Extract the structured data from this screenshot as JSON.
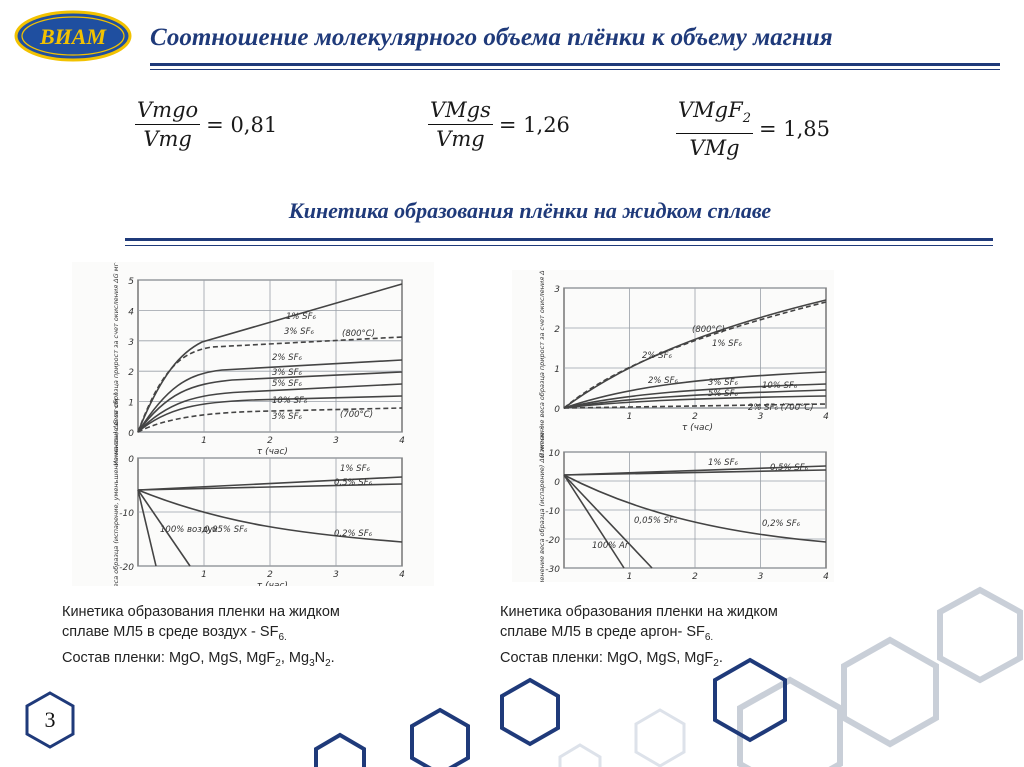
{
  "header": {
    "title": "Соотношение молекулярного объема плёнки к объему магния",
    "logo_text": "ВИАМ"
  },
  "formulas": [
    {
      "num": "Vmgo",
      "den": "Vmg",
      "value": "= 0,81"
    },
    {
      "num": "VMgs",
      "den": "Vmg",
      "value": "= 1,26"
    },
    {
      "num": "VMgF",
      "num_sub": "2",
      "den": "VMg",
      "value": "= 1,85"
    }
  ],
  "section_title": "Кинетика образования плёнки на жидком сплаве",
  "left_figure": {
    "top_ylabel": "Изменение веса образца прирост за счет окисления ΔG мг·см⁻²",
    "bottom_ylabel": "Изменение веса образца (испарение, уменьшение массы) ΔG мг·см⁻²",
    "top_yticks": [
      "5",
      "4",
      "3",
      "2",
      "1",
      "0"
    ],
    "bottom_yticks": [
      "0",
      "-10",
      "-20"
    ],
    "xticks": [
      "1",
      "2",
      "3",
      "4"
    ],
    "xlabel": "τ (час)",
    "top_curves": [
      "1% SF₆",
      "3% SF₆",
      "(800°C)",
      "2% SF₆",
      "3% SF₆",
      "5% SF₆",
      "10% SF₆",
      "3% SF₆",
      "(700°C)"
    ],
    "bottom_curves": [
      "1% SF₆",
      "0,5% SF₆",
      "100% воздух",
      "0,05% SF₆",
      "0,2% SF₆"
    ],
    "caption": [
      "Кинетика образования пленки на жидком",
      "сплаве МЛ5 в среде воздух - SF",
      "Состав пленки:  MgO, MgS, MgF",
      ", Mg",
      "N",
      "."
    ],
    "caption_subs": [
      "6.",
      "2",
      "3",
      "2"
    ]
  },
  "right_figure": {
    "top_ylabel": "Изменение веса образца прирост за счет окисления ΔG мг·см⁻²",
    "bottom_ylabel": "Изменение веса образца (испарение) ΔG мг·см⁻²",
    "top_yticks": [
      "3",
      "2",
      "1",
      "0"
    ],
    "bottom_yticks": [
      "10",
      "0",
      "-10",
      "-20",
      "-30"
    ],
    "xticks": [
      "1",
      "2",
      "3",
      "4"
    ],
    "xlabel": "τ (час)",
    "top_curves": [
      "(800°C)",
      "2% SF₆",
      "1% SF₆",
      "2% SF₆",
      "3% SF₆",
      "10% SF₆",
      "5% SF₆",
      "2% SF₆ (700°C)"
    ],
    "bottom_curves": [
      "1% SF₆",
      "0,5% SF₆",
      "0,05% SF₆",
      "0,2% SF₆",
      "100% Ar"
    ],
    "caption": [
      "Кинетика образования пленки на жидком",
      "сплаве МЛ5 в среде аргон- SF",
      "Состав пленки:  MgO, MgS, MgF",
      "."
    ],
    "caption_subs": [
      "6.",
      "2"
    ]
  },
  "page_number": "3",
  "colors": {
    "title": "#1f3a7a",
    "logo_bg": "#1f4fa0",
    "logo_fg": "#f2c200",
    "hex_stroke": "#c9cfd8"
  }
}
